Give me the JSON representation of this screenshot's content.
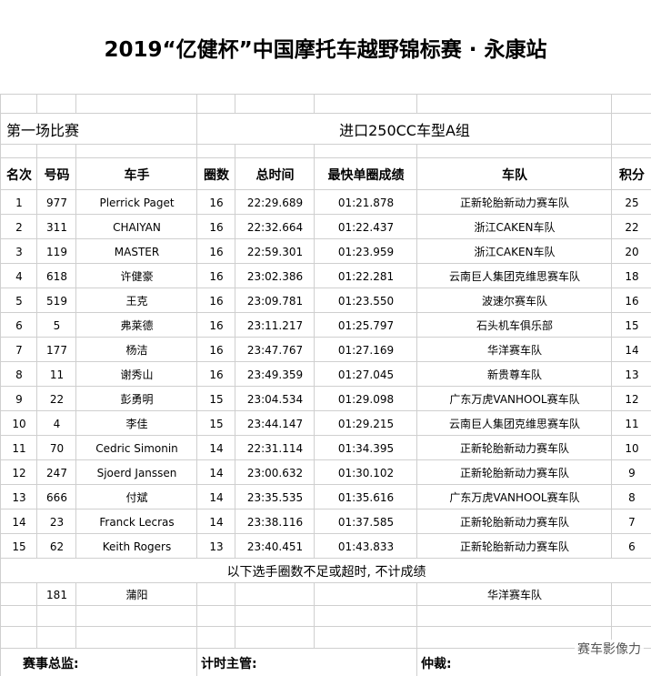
{
  "title": "2019“亿健杯”中国摩托车越野锦标赛 · 永康站",
  "race": "第一场比赛",
  "group": "进口250CC车型A组",
  "table": {
    "headers": [
      "名次",
      "号码",
      "车手",
      "圈数",
      "总时间",
      "最快单圈成绩",
      "车队",
      "积分"
    ],
    "rows": [
      [
        1,
        977,
        "Plerrick Paget",
        16,
        "22:29.689",
        "01:21.878",
        "正新轮胎新动力赛车队",
        25
      ],
      [
        2,
        311,
        "CHAIYAN",
        16,
        "22:32.664",
        "01:22.437",
        "浙江CAKEN车队",
        22
      ],
      [
        3,
        119,
        "MASTER",
        16,
        "22:59.301",
        "01:23.959",
        "浙江CAKEN车队",
        20
      ],
      [
        4,
        618,
        "许健豪",
        16,
        "23:02.386",
        "01:22.281",
        "云南巨人集团克维思赛车队",
        18
      ],
      [
        5,
        519,
        "王克",
        16,
        "23:09.781",
        "01:23.550",
        "波速尔赛车队",
        16
      ],
      [
        6,
        5,
        "弗莱德",
        16,
        "23:11.217",
        "01:25.797",
        "石头机车俱乐部",
        15
      ],
      [
        7,
        177,
        "杨洁",
        16,
        "23:47.767",
        "01:27.169",
        "华洋赛车队",
        14
      ],
      [
        8,
        11,
        "谢秀山",
        16,
        "23:49.359",
        "01:27.045",
        "新贵尊车队",
        13
      ],
      [
        9,
        22,
        "彭勇明",
        15,
        "23:04.534",
        "01:29.098",
        "广东万虎VANHOOL赛车队",
        12
      ],
      [
        10,
        4,
        "李佳",
        15,
        "23:44.147",
        "01:29.215",
        "云南巨人集团克维思赛车队",
        11
      ],
      [
        11,
        70,
        "Cedric Simonin",
        14,
        "22:31.114",
        "01:34.395",
        "正新轮胎新动力赛车队",
        10
      ],
      [
        12,
        247,
        "Sjoerd Janssen",
        14,
        "23:00.632",
        "01:30.102",
        "正新轮胎新动力赛车队",
        9
      ],
      [
        13,
        666,
        "付斌",
        14,
        "23:35.535",
        "01:35.616",
        "广东万虎VANHOOL赛车队",
        8
      ],
      [
        14,
        23,
        "Franck Lecras",
        14,
        "23:38.116",
        "01:37.585",
        "正新轮胎新动力赛车队",
        7
      ],
      [
        15,
        62,
        "Keith Rogers",
        13,
        "23:40.451",
        "01:43.833",
        "正新轮胎新动力赛车队",
        6
      ]
    ],
    "note": "以下选手圈数不足或超时, 不计成绩",
    "unranked": {
      "number": 181,
      "name": "蒲阳",
      "team": "华洋赛车队"
    }
  },
  "footer": [
    "赛事总监:",
    "计时主管:",
    "仲裁:"
  ],
  "watermark": "赛车影像力"
}
